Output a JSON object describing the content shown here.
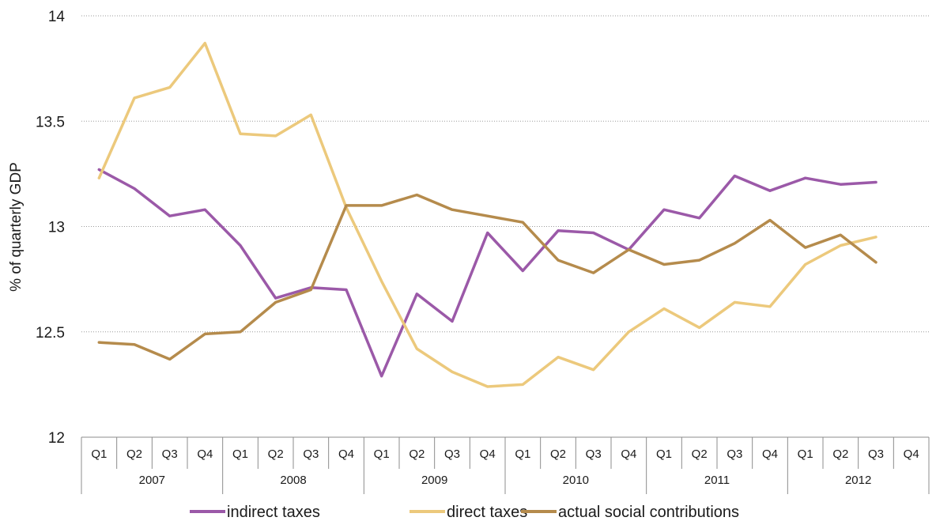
{
  "chart_data": {
    "type": "line",
    "title": "",
    "xlabel": "",
    "ylabel": "% of quarterly GDP",
    "ylim": [
      12,
      14
    ],
    "yticks": [
      "12",
      "12.5",
      "13",
      "13.5",
      "14"
    ],
    "grid": "horizontal dotted",
    "legend_position": "bottom",
    "years": [
      "2007",
      "2008",
      "2009",
      "2010",
      "2011",
      "2012"
    ],
    "quarters": [
      "Q1",
      "Q2",
      "Q3",
      "Q4"
    ],
    "categories": [
      "2007 Q1",
      "2007 Q2",
      "2007 Q3",
      "2007 Q4",
      "2008 Q1",
      "2008 Q2",
      "2008 Q3",
      "2008 Q4",
      "2009 Q1",
      "2009 Q2",
      "2009 Q3",
      "2009 Q4",
      "2010 Q1",
      "2010 Q2",
      "2010 Q3",
      "2010 Q4",
      "2011 Q1",
      "2011 Q2",
      "2011 Q3",
      "2011 Q4",
      "2012 Q1",
      "2012 Q2",
      "2012 Q3",
      "2012 Q4"
    ],
    "series": [
      {
        "name": "indirect taxes",
        "color": "#9b59a8",
        "values": [
          13.27,
          13.18,
          13.05,
          13.08,
          12.91,
          12.66,
          12.71,
          12.7,
          12.29,
          12.68,
          12.55,
          12.97,
          12.79,
          12.98,
          12.97,
          12.89,
          13.08,
          13.04,
          13.24,
          13.17,
          13.23,
          13.2,
          13.21,
          null
        ]
      },
      {
        "name": "direct taxes",
        "color": "#ecc97c",
        "values": [
          13.23,
          13.61,
          13.66,
          13.87,
          13.44,
          13.43,
          13.53,
          13.09,
          12.74,
          12.42,
          12.31,
          12.24,
          12.25,
          12.38,
          12.32,
          12.5,
          12.61,
          12.52,
          12.64,
          12.62,
          12.82,
          12.91,
          12.95,
          null
        ]
      },
      {
        "name": "actual social contributions",
        "color": "#b58b4c",
        "values": [
          12.45,
          12.44,
          12.37,
          12.49,
          12.5,
          12.64,
          12.7,
          13.1,
          13.1,
          13.15,
          13.08,
          13.05,
          13.02,
          12.84,
          12.78,
          12.89,
          12.82,
          12.84,
          12.92,
          13.03,
          12.9,
          12.96,
          12.83,
          null
        ]
      }
    ]
  }
}
